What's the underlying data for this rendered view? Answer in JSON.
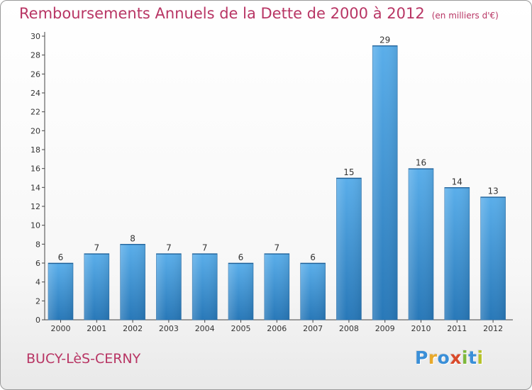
{
  "header": {
    "title": "Remboursements Annuels de la Dette de 2000 à 2012",
    "unit": "(en milliers d'€)"
  },
  "footer": {
    "commune": "BUCY-LèS-CERNY",
    "brand_letters": [
      "P",
      "r",
      "o",
      "x",
      "i",
      "t",
      "i"
    ],
    "brand_colors": [
      "#3a8fd8",
      "#e8a92c",
      "#3a8fd8",
      "#d94a2b",
      "#7db83a",
      "#3a8fd8",
      "#b6c22a"
    ]
  },
  "colors": {
    "bar_top": "#5aaeea",
    "bar_bottom": "#2878b8",
    "title": "#b83564"
  },
  "chart_data": {
    "type": "bar",
    "title": "Remboursements Annuels de la Dette de 2000 à 2012",
    "xlabel": "",
    "ylabel": "",
    "categories": [
      "2000",
      "2001",
      "2002",
      "2003",
      "2004",
      "2005",
      "2006",
      "2007",
      "2008",
      "2009",
      "2010",
      "2011",
      "2012"
    ],
    "values": [
      6,
      7,
      8,
      7,
      7,
      6,
      7,
      6,
      15,
      29,
      16,
      14,
      13
    ],
    "ylim": [
      0,
      30
    ],
    "yticks": [
      0,
      2,
      4,
      6,
      8,
      10,
      12,
      14,
      16,
      18,
      20,
      22,
      24,
      26,
      28,
      30
    ],
    "grid": false,
    "legend": "none"
  }
}
